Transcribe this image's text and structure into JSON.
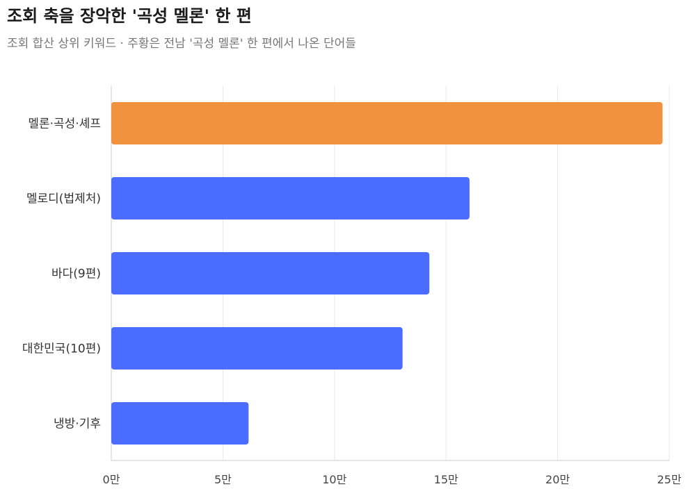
{
  "header": {
    "title": "조회 축을 장악한 '곡성 멜론' 한 편",
    "subtitle": "조회 합산 상위 키워드 · 주황은 전남 '곡성 멜론' 한 편에서 나온 단어들"
  },
  "colors": {
    "highlight": "#F0923E",
    "default": "#4A6CFF",
    "grid": "#e8e8e8",
    "axis": "#cccccc"
  },
  "chart_data": {
    "type": "bar",
    "orientation": "horizontal",
    "title": "조회 축을 장악한 '곡성 멜론' 한 편",
    "subtitle": "조회 합산 상위 키워드 · 주황은 전남 '곡성 멜론' 한 편에서 나온 단어들",
    "categories": [
      "멜론·곡성·셰프",
      "멜로디(법제처)",
      "바다(9편)",
      "대한민국(10편)",
      "냉방·기후"
    ],
    "values": [
      247000,
      160500,
      142500,
      130500,
      61500
    ],
    "highlighted": [
      true,
      false,
      false,
      false,
      false
    ],
    "xlim": [
      0,
      250000
    ],
    "ticks": [
      0,
      50000,
      100000,
      150000,
      200000,
      250000
    ],
    "tick_labels": [
      "0만",
      "5만",
      "10만",
      "15만",
      "20만",
      "25만"
    ],
    "xlabel": "",
    "ylabel": "",
    "grid": true
  }
}
